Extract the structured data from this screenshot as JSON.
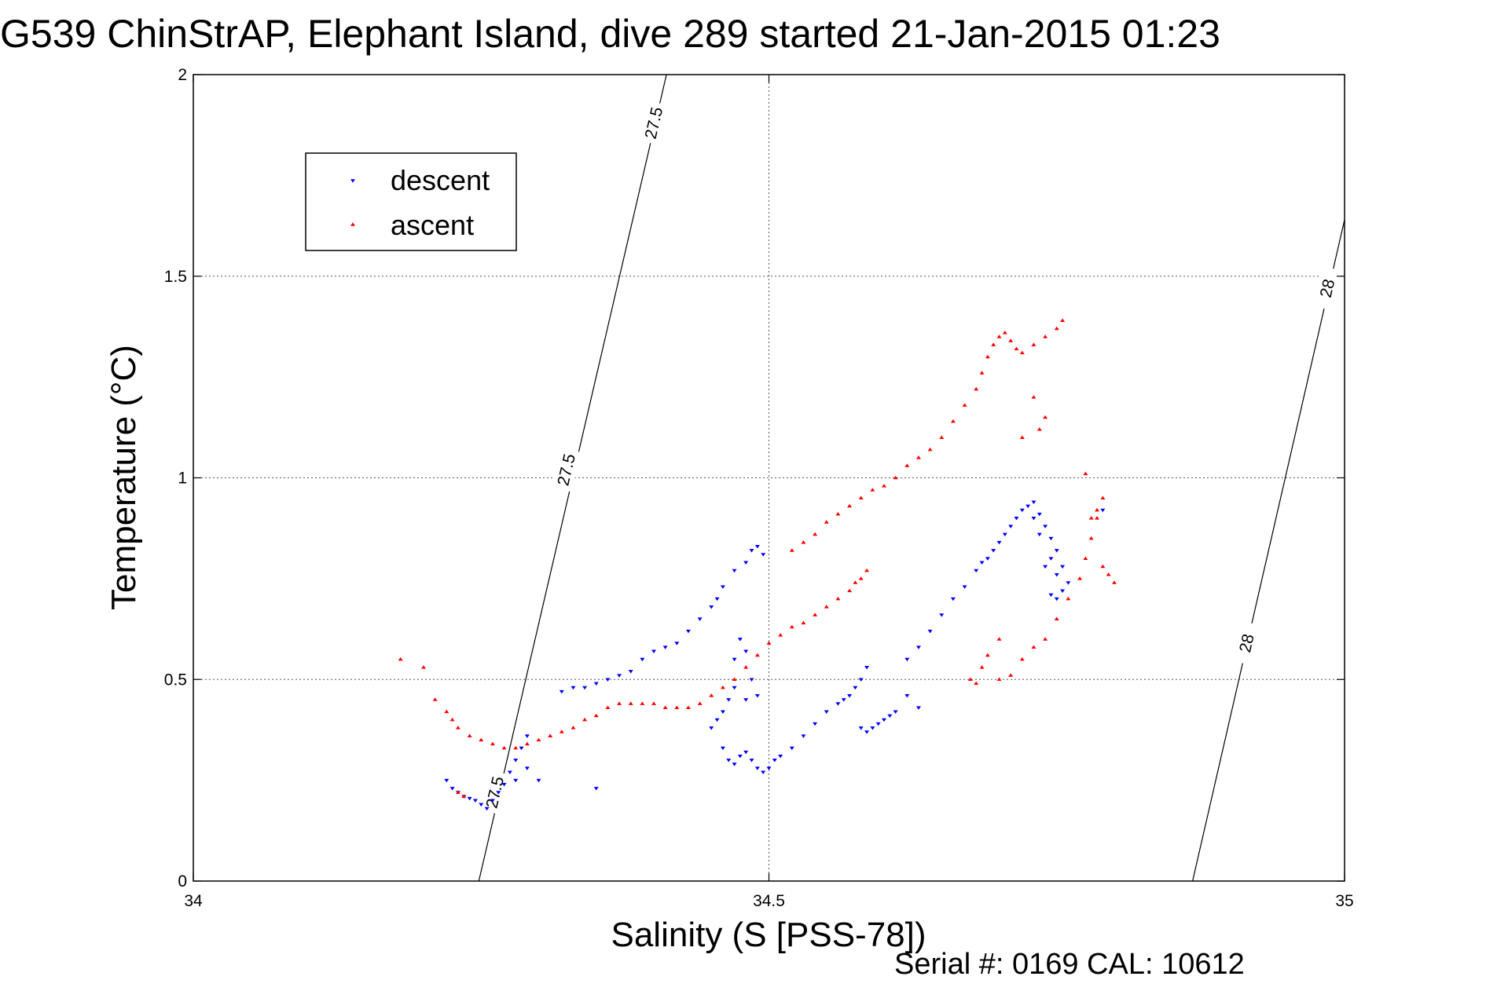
{
  "chart_data": {
    "type": "scatter",
    "title": "G539 ChinStrAP, Elephant Island, dive 289 started 21-Jan-2015 01:23",
    "xlabel": "Salinity (S [PSS-78])",
    "ylabel": "Temperature (°C)",
    "xlim": [
      34,
      35
    ],
    "ylim": [
      0,
      2
    ],
    "xticks": [
      34,
      34.5,
      35
    ],
    "xtick_labels": [
      "34",
      "34.5",
      "35"
    ],
    "yticks": [
      0,
      0.5,
      1,
      1.5,
      2
    ],
    "ytick_labels": [
      "0",
      "0.5",
      "1",
      "1.5",
      "2"
    ],
    "grid": true,
    "legend_position": "top-left",
    "footer": "Serial #: 0169 CAL: 10612",
    "contours": [
      {
        "label": "27.5",
        "points": [
          [
            34.248,
            0
          ],
          [
            34.411,
            2
          ]
        ],
        "label_positions": [
          [
            34.262,
            0.22
          ],
          [
            34.324,
            1.02
          ],
          [
            34.4,
            1.88
          ]
        ]
      },
      {
        "label": "28",
        "points": [
          [
            34.868,
            0
          ],
          [
            35.0,
            1.64
          ]
        ],
        "label_positions": [
          [
            34.915,
            0.59
          ],
          [
            34.985,
            1.47
          ]
        ]
      }
    ],
    "series": [
      {
        "name": "descent",
        "color": "#0000ff",
        "marker": "triangle-down",
        "points": [
          [
            34.22,
            0.25
          ],
          [
            34.225,
            0.23
          ],
          [
            34.23,
            0.22
          ],
          [
            34.235,
            0.21
          ],
          [
            34.24,
            0.205
          ],
          [
            34.245,
            0.2
          ],
          [
            34.25,
            0.19
          ],
          [
            34.255,
            0.18
          ],
          [
            34.26,
            0.2
          ],
          [
            34.265,
            0.22
          ],
          [
            34.27,
            0.24
          ],
          [
            34.275,
            0.27
          ],
          [
            34.28,
            0.3
          ],
          [
            34.285,
            0.33
          ],
          [
            34.29,
            0.36
          ],
          [
            34.28,
            0.25
          ],
          [
            34.29,
            0.28
          ],
          [
            34.3,
            0.25
          ],
          [
            34.35,
            0.23
          ],
          [
            34.32,
            0.47
          ],
          [
            34.33,
            0.48
          ],
          [
            34.34,
            0.48
          ],
          [
            34.35,
            0.49
          ],
          [
            34.36,
            0.5
          ],
          [
            34.37,
            0.51
          ],
          [
            34.38,
            0.52
          ],
          [
            34.39,
            0.55
          ],
          [
            34.4,
            0.57
          ],
          [
            34.41,
            0.58
          ],
          [
            34.42,
            0.59
          ],
          [
            34.43,
            0.62
          ],
          [
            34.44,
            0.65
          ],
          [
            34.45,
            0.68
          ],
          [
            34.455,
            0.7
          ],
          [
            34.46,
            0.73
          ],
          [
            34.47,
            0.77
          ],
          [
            34.48,
            0.79
          ],
          [
            34.485,
            0.82
          ],
          [
            34.49,
            0.83
          ],
          [
            34.495,
            0.81
          ],
          [
            34.47,
            0.55
          ],
          [
            34.475,
            0.6
          ],
          [
            34.48,
            0.57
          ],
          [
            34.485,
            0.5
          ],
          [
            34.49,
            0.46
          ],
          [
            34.48,
            0.45
          ],
          [
            34.47,
            0.48
          ],
          [
            34.465,
            0.45
          ],
          [
            34.46,
            0.42
          ],
          [
            34.455,
            0.4
          ],
          [
            34.45,
            0.38
          ],
          [
            34.46,
            0.33
          ],
          [
            34.465,
            0.3
          ],
          [
            34.47,
            0.29
          ],
          [
            34.475,
            0.31
          ],
          [
            34.48,
            0.32
          ],
          [
            34.485,
            0.3
          ],
          [
            34.49,
            0.28
          ],
          [
            34.495,
            0.27
          ],
          [
            34.5,
            0.28
          ],
          [
            34.505,
            0.3
          ],
          [
            34.51,
            0.31
          ],
          [
            34.52,
            0.33
          ],
          [
            34.53,
            0.36
          ],
          [
            34.54,
            0.39
          ],
          [
            34.55,
            0.42
          ],
          [
            34.56,
            0.44
          ],
          [
            34.565,
            0.45
          ],
          [
            34.57,
            0.46
          ],
          [
            34.575,
            0.48
          ],
          [
            34.58,
            0.5
          ],
          [
            34.585,
            0.53
          ],
          [
            34.58,
            0.38
          ],
          [
            34.585,
            0.37
          ],
          [
            34.59,
            0.38
          ],
          [
            34.595,
            0.39
          ],
          [
            34.6,
            0.4
          ],
          [
            34.605,
            0.41
          ],
          [
            34.61,
            0.42
          ],
          [
            34.62,
            0.46
          ],
          [
            34.63,
            0.43
          ],
          [
            34.62,
            0.55
          ],
          [
            34.63,
            0.58
          ],
          [
            34.64,
            0.62
          ],
          [
            34.65,
            0.66
          ],
          [
            34.66,
            0.7
          ],
          [
            34.67,
            0.73
          ],
          [
            34.68,
            0.77
          ],
          [
            34.685,
            0.79
          ],
          [
            34.69,
            0.8
          ],
          [
            34.695,
            0.82
          ],
          [
            34.7,
            0.84
          ],
          [
            34.705,
            0.86
          ],
          [
            34.71,
            0.88
          ],
          [
            34.715,
            0.9
          ],
          [
            34.72,
            0.92
          ],
          [
            34.725,
            0.93
          ],
          [
            34.73,
            0.94
          ],
          [
            34.735,
            0.91
          ],
          [
            34.74,
            0.88
          ],
          [
            34.745,
            0.85
          ],
          [
            34.75,
            0.82
          ],
          [
            34.755,
            0.78
          ],
          [
            34.76,
            0.74
          ],
          [
            34.755,
            0.72
          ],
          [
            34.75,
            0.7
          ],
          [
            34.745,
            0.71
          ],
          [
            34.74,
            0.78
          ],
          [
            34.735,
            0.86
          ],
          [
            34.73,
            0.9
          ],
          [
            34.745,
            0.8
          ],
          [
            34.75,
            0.76
          ],
          [
            34.79,
            0.92
          ]
        ]
      },
      {
        "name": "ascent",
        "color": "#ff0000",
        "marker": "triangle-up",
        "points": [
          [
            34.18,
            0.55
          ],
          [
            34.2,
            0.53
          ],
          [
            34.21,
            0.45
          ],
          [
            34.22,
            0.42
          ],
          [
            34.225,
            0.4
          ],
          [
            34.23,
            0.38
          ],
          [
            34.24,
            0.36
          ],
          [
            34.25,
            0.35
          ],
          [
            34.26,
            0.34
          ],
          [
            34.27,
            0.33
          ],
          [
            34.28,
            0.33
          ],
          [
            34.29,
            0.34
          ],
          [
            34.3,
            0.35
          ],
          [
            34.31,
            0.36
          ],
          [
            34.32,
            0.37
          ],
          [
            34.23,
            0.22
          ],
          [
            34.235,
            0.21
          ],
          [
            34.33,
            0.38
          ],
          [
            34.34,
            0.4
          ],
          [
            34.35,
            0.41
          ],
          [
            34.36,
            0.43
          ],
          [
            34.37,
            0.44
          ],
          [
            34.38,
            0.44
          ],
          [
            34.39,
            0.44
          ],
          [
            34.4,
            0.44
          ],
          [
            34.41,
            0.43
          ],
          [
            34.42,
            0.43
          ],
          [
            34.43,
            0.43
          ],
          [
            34.44,
            0.44
          ],
          [
            34.45,
            0.46
          ],
          [
            34.46,
            0.48
          ],
          [
            34.47,
            0.5
          ],
          [
            34.48,
            0.53
          ],
          [
            34.49,
            0.56
          ],
          [
            34.5,
            0.59
          ],
          [
            34.51,
            0.61
          ],
          [
            34.52,
            0.63
          ],
          [
            34.53,
            0.64
          ],
          [
            34.54,
            0.66
          ],
          [
            34.55,
            0.68
          ],
          [
            34.56,
            0.7
          ],
          [
            34.57,
            0.72
          ],
          [
            34.575,
            0.74
          ],
          [
            34.58,
            0.75
          ],
          [
            34.585,
            0.77
          ],
          [
            34.52,
            0.82
          ],
          [
            34.53,
            0.84
          ],
          [
            34.54,
            0.86
          ],
          [
            34.55,
            0.89
          ],
          [
            34.56,
            0.91
          ],
          [
            34.57,
            0.93
          ],
          [
            34.58,
            0.95
          ],
          [
            34.59,
            0.97
          ],
          [
            34.6,
            0.98
          ],
          [
            34.61,
            1.0
          ],
          [
            34.62,
            1.03
          ],
          [
            34.63,
            1.05
          ],
          [
            34.64,
            1.07
          ],
          [
            34.65,
            1.1
          ],
          [
            34.66,
            1.14
          ],
          [
            34.67,
            1.18
          ],
          [
            34.68,
            1.22
          ],
          [
            34.685,
            1.26
          ],
          [
            34.69,
            1.3
          ],
          [
            34.695,
            1.33
          ],
          [
            34.7,
            1.35
          ],
          [
            34.705,
            1.36
          ],
          [
            34.71,
            1.34
          ],
          [
            34.715,
            1.32
          ],
          [
            34.72,
            1.31
          ],
          [
            34.73,
            1.33
          ],
          [
            34.74,
            1.35
          ],
          [
            34.75,
            1.37
          ],
          [
            34.755,
            1.39
          ],
          [
            34.73,
            1.2
          ],
          [
            34.74,
            1.15
          ],
          [
            34.735,
            1.12
          ],
          [
            34.72,
            1.1
          ],
          [
            34.7,
            0.5
          ],
          [
            34.71,
            0.51
          ],
          [
            34.72,
            0.55
          ],
          [
            34.73,
            0.58
          ],
          [
            34.74,
            0.6
          ],
          [
            34.75,
            0.65
          ],
          [
            34.76,
            0.7
          ],
          [
            34.77,
            0.75
          ],
          [
            34.775,
            0.8
          ],
          [
            34.78,
            0.85
          ],
          [
            34.785,
            0.9
          ],
          [
            34.79,
            0.95
          ],
          [
            34.785,
            0.92
          ],
          [
            34.78,
            0.9
          ],
          [
            34.775,
            1.01
          ],
          [
            34.79,
            0.78
          ],
          [
            34.795,
            0.76
          ],
          [
            34.8,
            0.74
          ],
          [
            34.7,
            0.6
          ],
          [
            34.69,
            0.56
          ],
          [
            34.685,
            0.53
          ],
          [
            34.68,
            0.49
          ],
          [
            34.675,
            0.5
          ]
        ]
      }
    ]
  }
}
